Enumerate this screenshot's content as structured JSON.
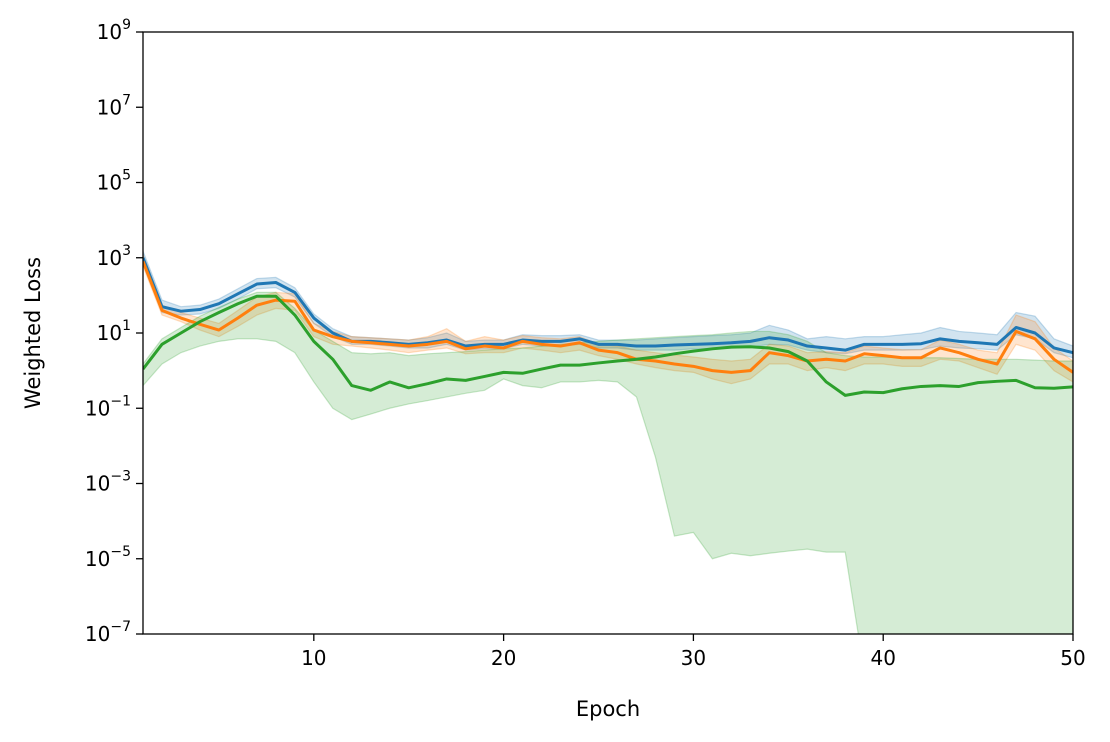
{
  "chart_data": {
    "type": "line",
    "title": "",
    "xlabel": "Epoch",
    "ylabel": "Weighted Loss",
    "xlim": [
      1,
      50
    ],
    "ylim": [
      1e-07,
      1000000000.0
    ],
    "yscale": "log",
    "grid": false,
    "x_ticks": [
      10,
      20,
      30,
      40,
      50
    ],
    "y_tick_exponents": [
      -7,
      -5,
      -3,
      -1,
      1,
      3,
      5,
      7,
      9
    ],
    "y_tick_base": "10",
    "x": [
      1,
      2,
      3,
      4,
      5,
      6,
      7,
      8,
      9,
      10,
      11,
      12,
      13,
      14,
      15,
      16,
      17,
      18,
      19,
      20,
      21,
      22,
      23,
      24,
      25,
      26,
      27,
      28,
      29,
      30,
      31,
      32,
      33,
      34,
      35,
      36,
      37,
      38,
      39,
      40,
      41,
      42,
      43,
      44,
      45,
      46,
      47,
      48,
      49,
      50
    ],
    "series": [
      {
        "color": "#1f77b4",
        "values": [
          1000,
          50,
          38,
          42,
          60,
          110,
          200,
          220,
          120,
          25,
          10,
          6,
          6,
          5.5,
          5,
          5.5,
          6.5,
          4.5,
          5,
          5,
          6.5,
          6,
          6,
          7,
          5,
          5,
          4.5,
          4.5,
          4.8,
          5,
          5.2,
          5.5,
          6,
          7.5,
          6.5,
          4.5,
          4,
          3.5,
          5,
          5,
          5,
          5.2,
          7,
          6,
          5.5,
          5,
          14,
          10,
          4,
          3
        ],
        "lower": [
          700,
          35,
          30,
          32,
          45,
          80,
          150,
          160,
          90,
          18,
          8,
          5,
          5,
          4.5,
          4,
          4,
          5,
          3.5,
          3.8,
          3.8,
          5,
          4.5,
          4.5,
          5,
          4,
          4,
          3.5,
          3.5,
          3.5,
          3.8,
          3.8,
          4,
          4.2,
          5,
          4.8,
          3.5,
          3,
          2.8,
          3.5,
          3.5,
          3.5,
          3.6,
          4.5,
          4,
          3.8,
          3.5,
          9,
          7,
          3,
          2.2
        ],
        "upper": [
          1500,
          75,
          50,
          55,
          80,
          150,
          280,
          300,
          160,
          32,
          13,
          8,
          7.5,
          7,
          6.5,
          7.5,
          10,
          6,
          6.5,
          6.5,
          9,
          8.5,
          8.5,
          9,
          6.5,
          6.5,
          6.5,
          7,
          7.5,
          8,
          8.5,
          9,
          10,
          16,
          12,
          7,
          8,
          7,
          8,
          8,
          9,
          10,
          14,
          11,
          10,
          9,
          35,
          28,
          7,
          4.5
        ]
      },
      {
        "color": "#ff7f0e",
        "values": [
          800,
          40,
          25,
          17,
          12,
          25,
          55,
          75,
          70,
          12,
          8,
          6,
          5.5,
          5,
          4.5,
          5,
          6,
          3.8,
          4.5,
          4,
          6,
          5,
          4.5,
          5.5,
          3.5,
          3,
          2,
          1.8,
          1.5,
          1.3,
          1,
          0.9,
          1,
          3,
          2.5,
          1.8,
          2,
          1.8,
          2.8,
          2.5,
          2.2,
          2.2,
          4,
          3,
          2,
          1.5,
          11,
          7,
          2,
          0.9
        ],
        "lower": [
          600,
          30,
          20,
          12,
          8,
          15,
          30,
          45,
          40,
          8,
          5,
          4.5,
          4,
          3.5,
          3,
          3.5,
          4,
          2.8,
          3,
          3,
          4,
          3.5,
          3,
          3.5,
          2.5,
          2,
          1.5,
          1.2,
          1,
          0.9,
          0.6,
          0.45,
          0.6,
          1.5,
          1.5,
          1,
          1.2,
          1,
          1.5,
          1.5,
          1.3,
          1.3,
          2,
          1.8,
          1.2,
          0.8,
          5,
          3.5,
          1,
          0.5
        ],
        "upper": [
          1200,
          55,
          35,
          25,
          18,
          40,
          90,
          120,
          110,
          18,
          11,
          8,
          7.5,
          7,
          6.5,
          8,
          13,
          6,
          8,
          6.5,
          8.5,
          7.5,
          7,
          8,
          5,
          4.5,
          3.5,
          3,
          2.6,
          2.3,
          2,
          1.8,
          2,
          5,
          4.5,
          3,
          3.2,
          3,
          4.5,
          4,
          3.6,
          3.6,
          6.5,
          5,
          3.5,
          3,
          30,
          20,
          4,
          1.8
        ]
      },
      {
        "color": "#2ca02c",
        "values": [
          1.1,
          5,
          10,
          20,
          35,
          60,
          95,
          95,
          30,
          6,
          2,
          0.4,
          0.3,
          0.5,
          0.35,
          0.45,
          0.6,
          0.55,
          0.7,
          0.9,
          0.85,
          1.1,
          1.4,
          1.4,
          1.6,
          1.8,
          2,
          2.3,
          2.8,
          3.3,
          3.8,
          4.2,
          4.3,
          4,
          3.2,
          1.8,
          0.5,
          0.22,
          0.27,
          0.26,
          0.33,
          0.38,
          0.4,
          0.38,
          0.48,
          0.52,
          0.55,
          0.35,
          0.34,
          0.37
        ],
        "lower": [
          0.4,
          1.5,
          3,
          4.5,
          6,
          7,
          7,
          6,
          3,
          0.5,
          0.1,
          0.05,
          0.07,
          0.1,
          0.13,
          0.16,
          0.2,
          0.25,
          0.3,
          0.6,
          0.4,
          0.35,
          0.5,
          0.5,
          0.55,
          0.5,
          0.2,
          0.005,
          4e-05,
          5e-05,
          1e-05,
          1.4e-05,
          1.2e-05,
          1.4e-05,
          1.6e-05,
          1.8e-05,
          1.5e-05,
          1.5e-05,
          1e-08,
          1e-08,
          1e-08,
          1e-08,
          1e-08,
          1e-08,
          1e-08,
          1e-08,
          1e-08,
          1e-08,
          1e-08,
          1e-08
        ],
        "upper": [
          1.5,
          7,
          14,
          28,
          48,
          80,
          120,
          120,
          45,
          12,
          6,
          3,
          2.8,
          3,
          2.5,
          2.8,
          3,
          3.2,
          3.5,
          3.8,
          4,
          4.5,
          5,
          5.5,
          6,
          6.5,
          7,
          7.5,
          8,
          8.5,
          9,
          10,
          11,
          11,
          9,
          6,
          3,
          2.5,
          2.3,
          2.3,
          2.2,
          2.2,
          2.2,
          2.1,
          2,
          2,
          2,
          1.9,
          1.8,
          1.8
        ]
      }
    ]
  }
}
